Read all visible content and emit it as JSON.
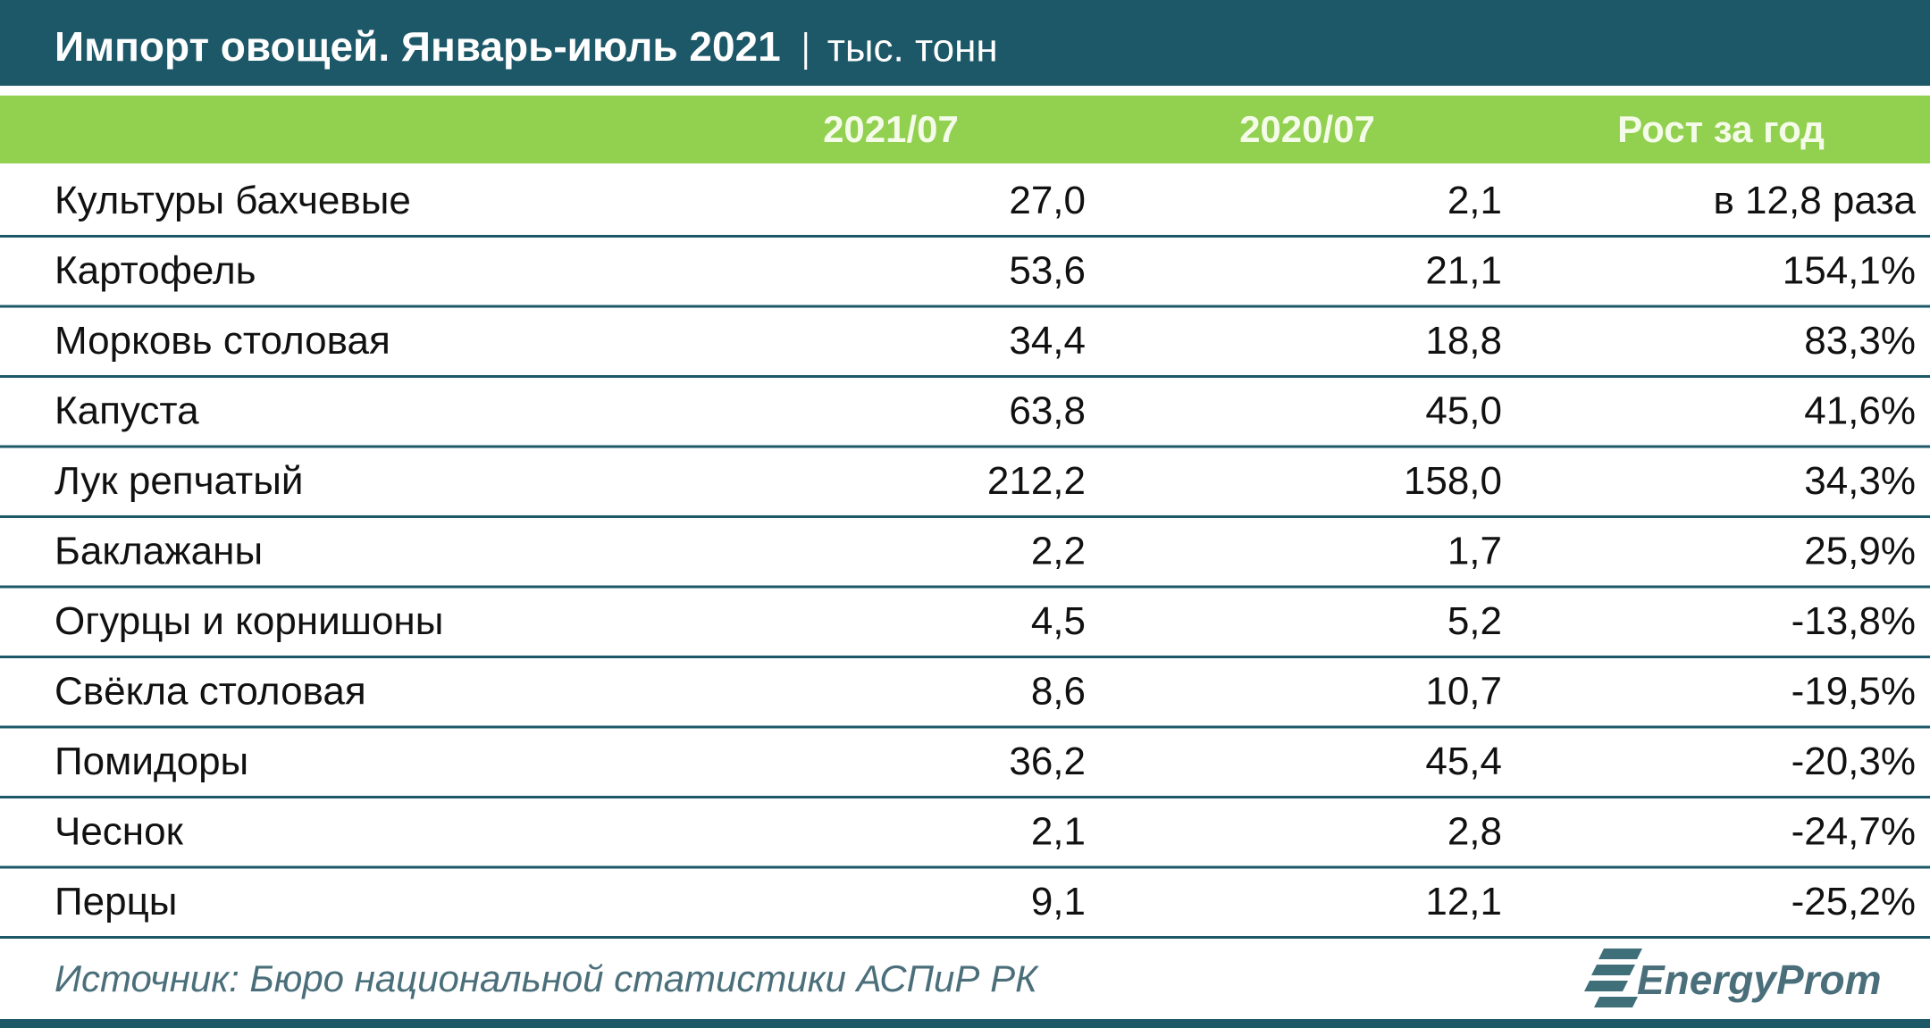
{
  "header": {
    "title": "Импорт овощей. Январь-июль 2021",
    "unit": "тыс. тонн"
  },
  "table": {
    "columns": [
      "2021/07",
      "2020/07",
      "Рост за год"
    ],
    "rows": [
      [
        "Культуры бахчевые",
        "27,0",
        "2,1",
        "в 12,8 раза"
      ],
      [
        "Картофель",
        "53,6",
        "21,1",
        "154,1%"
      ],
      [
        "Морковь столовая",
        "34,4",
        "18,8",
        "83,3%"
      ],
      [
        "Капуста",
        "63,8",
        "45,0",
        "41,6%"
      ],
      [
        "Лук репчатый",
        "212,2",
        "158,0",
        "34,3%"
      ],
      [
        "Баклажаны",
        "2,2",
        "1,7",
        "25,9%"
      ],
      [
        "Огурцы и корнишоны",
        "4,5",
        "5,2",
        "-13,8%"
      ],
      [
        "Свёкла столовая",
        "8,6",
        "10,7",
        "-19,5%"
      ],
      [
        "Помидоры",
        "36,2",
        "45,4",
        "-20,3%"
      ],
      [
        "Чеснок",
        "2,1",
        "2,8",
        "-24,7%"
      ],
      [
        "Перцы",
        "9,1",
        "12,1",
        "-25,2%"
      ]
    ]
  },
  "footer": {
    "source": "Источник: Бюро национальной статистики АСПиР РК",
    "logo": "EnergyProm"
  }
}
